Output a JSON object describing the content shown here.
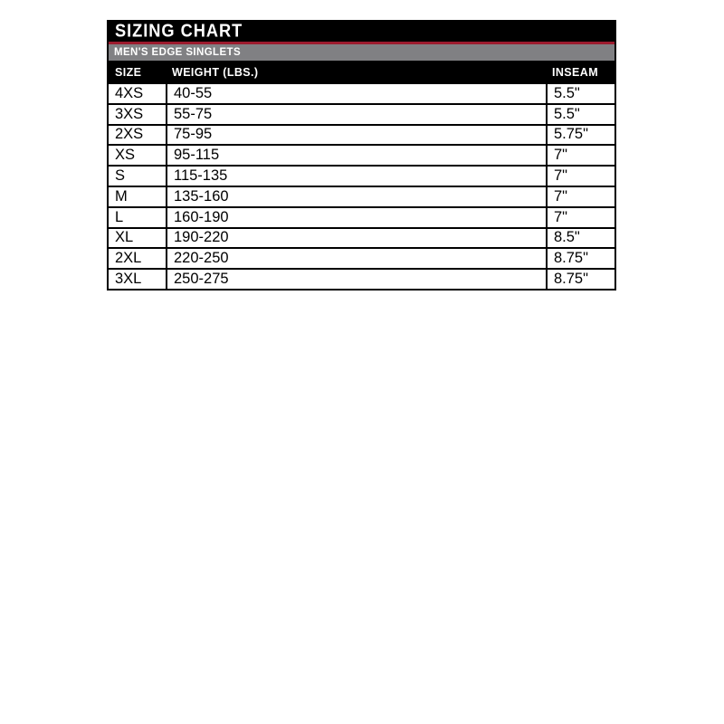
{
  "chart_data": {
    "type": "table",
    "title": "SIZING CHART",
    "subtitle": "MEN'S EDGE SINGLETS",
    "columns": [
      "SIZE",
      "WEIGHT (LBS.)",
      "INSEAM"
    ],
    "rows": [
      [
        "4XS",
        "40-55",
        "5.5\""
      ],
      [
        "3XS",
        "55-75",
        "5.5\""
      ],
      [
        "2XS",
        "75-95",
        "5.75\""
      ],
      [
        "XS",
        "95-115",
        "7\""
      ],
      [
        "S",
        "115-135",
        "7\""
      ],
      [
        "M",
        "135-160",
        "7\""
      ],
      [
        "L",
        "160-190",
        "7\""
      ],
      [
        "XL",
        "190-220",
        "8.5\""
      ],
      [
        "2XL",
        "220-250",
        "8.75\""
      ],
      [
        "3XL",
        "250-275",
        "8.75\""
      ]
    ],
    "colors": {
      "title_bg": "#000000",
      "accent_red": "#9c1b2e",
      "subtitle_bg": "#808083",
      "header_text": "#ffffff",
      "cell_text": "#000000",
      "cell_bg": "#ffffff"
    },
    "layout_hints": {
      "legend_position": "none",
      "grid": "table-borders"
    }
  }
}
